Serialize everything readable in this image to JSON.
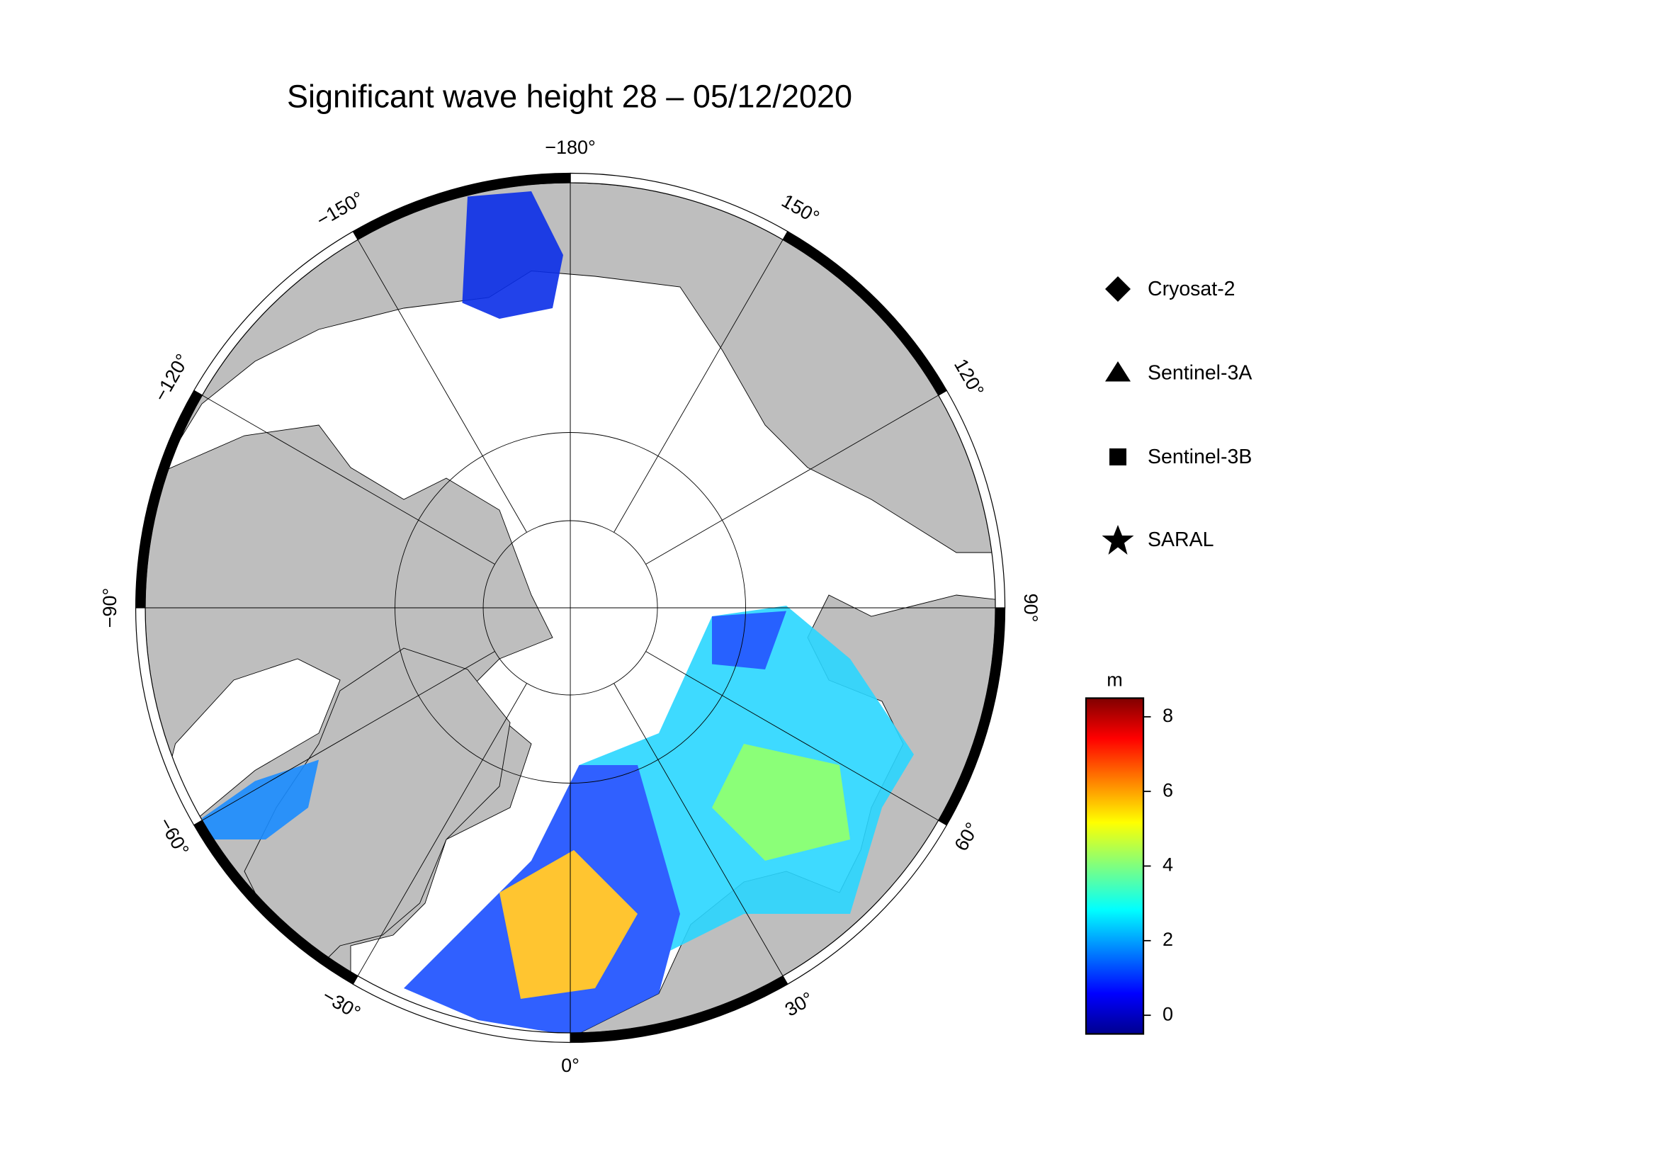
{
  "title": "Significant wave height 28 – 05/12/2020",
  "map": {
    "longitude_labels": [
      {
        "value": -180,
        "label": "−180°"
      },
      {
        "value": 150,
        "label": "150°"
      },
      {
        "value": 120,
        "label": "120°"
      },
      {
        "value": 90,
        "label": "90°"
      },
      {
        "value": 60,
        "label": "60°"
      },
      {
        "value": 30,
        "label": "30°"
      },
      {
        "value": 0,
        "label": "0°"
      },
      {
        "value": -30,
        "label": "−30°"
      },
      {
        "value": -60,
        "label": "−60°"
      },
      {
        "value": -90,
        "label": "−90°"
      },
      {
        "value": -120,
        "label": "−120°"
      },
      {
        "value": -150,
        "label": "−150°"
      }
    ]
  },
  "legend": {
    "entries": [
      "Cryosat-2",
      "Sentinel-3A",
      "Sentinel-3B",
      "SARAL"
    ]
  },
  "colorbar": {
    "label": "m",
    "range": [
      -0.5,
      8.5
    ],
    "ticks": [
      0,
      2,
      4,
      6,
      8
    ]
  }
}
